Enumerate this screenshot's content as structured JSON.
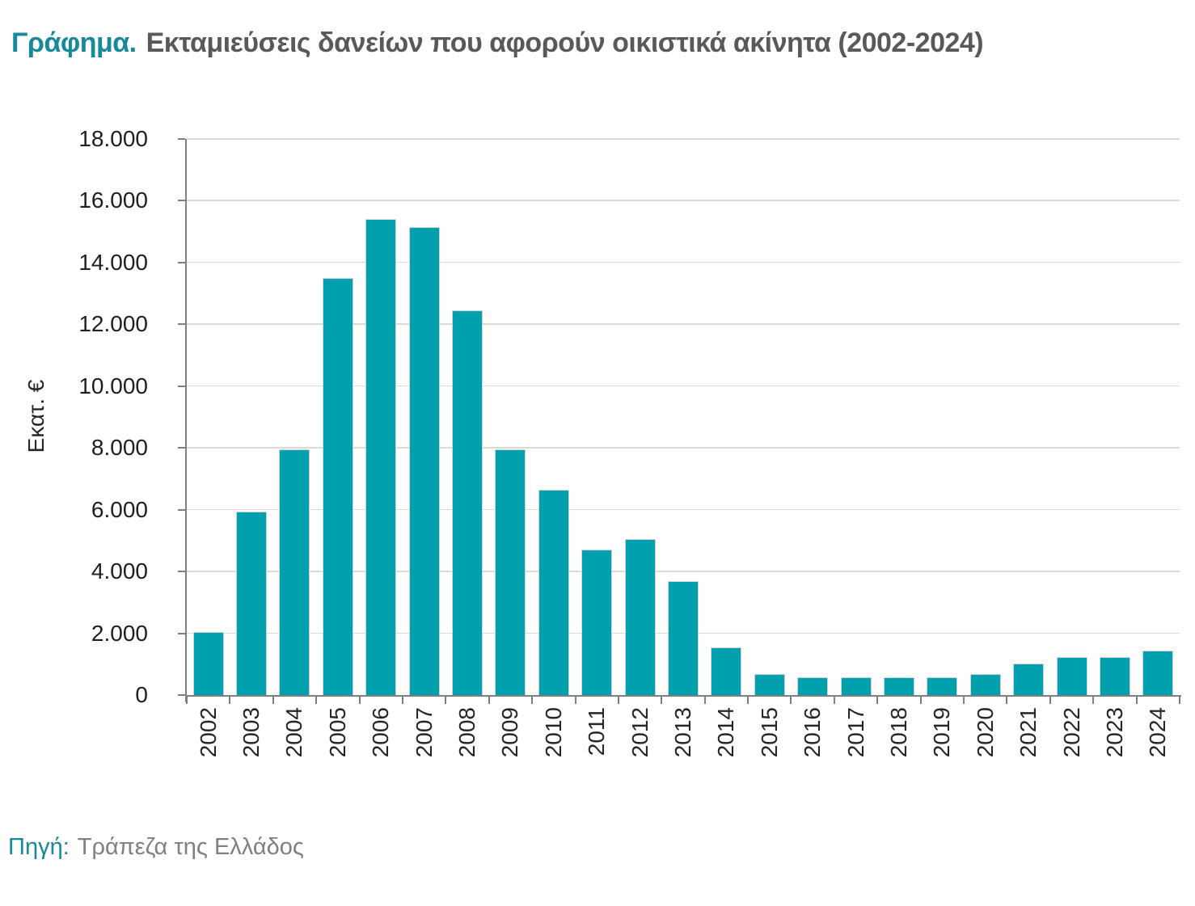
{
  "page": {
    "title_prefix": "Γράφημα.",
    "title_text": "Εκταμιεύσεις δανείων που αφορούν οικιστικά ακίνητα (2002-2024)",
    "source_prefix": "Πηγή:",
    "source_text": "Τράπεζα της Ελλάδος"
  },
  "colors": {
    "bar": "#00A0AE",
    "accent_teal": "#17899B",
    "title_gray": "#58595B",
    "source_gray": "#808080",
    "axis_gray": "#7F7F7F",
    "gridline_gray": "#DDD9D3",
    "tick_label": "#1F1F1F"
  },
  "chart_data": {
    "type": "bar",
    "title": "Εκταμιεύσεις δανείων που αφορούν οικιστικά ακίνητα (2002-2024)",
    "categories": [
      "2002",
      "2003",
      "2004",
      "2005",
      "2006",
      "2007",
      "2008",
      "2009",
      "2010",
      "2011",
      "2012",
      "2013",
      "2014",
      "2015",
      "2016",
      "2017",
      "2018",
      "2019",
      "2020",
      "2021",
      "2022",
      "2023",
      "2024"
    ],
    "values": [
      2050,
      5950,
      7950,
      13500,
      15400,
      15150,
      12450,
      7950,
      6650,
      4700,
      5050,
      3700,
      1550,
      690,
      570,
      570,
      570,
      570,
      680,
      1020,
      1220,
      1240,
      1430
    ],
    "xlabel": "",
    "ylabel": "Εκατ. €",
    "ylim": [
      0,
      18000
    ],
    "ytick_step": 2000,
    "ytick_labels": [
      "0",
      "2.000",
      "4.000",
      "6.000",
      "8.000",
      "10.000",
      "12.000",
      "14.000",
      "16.000",
      "18.000"
    ],
    "grid": true,
    "legend": false
  }
}
